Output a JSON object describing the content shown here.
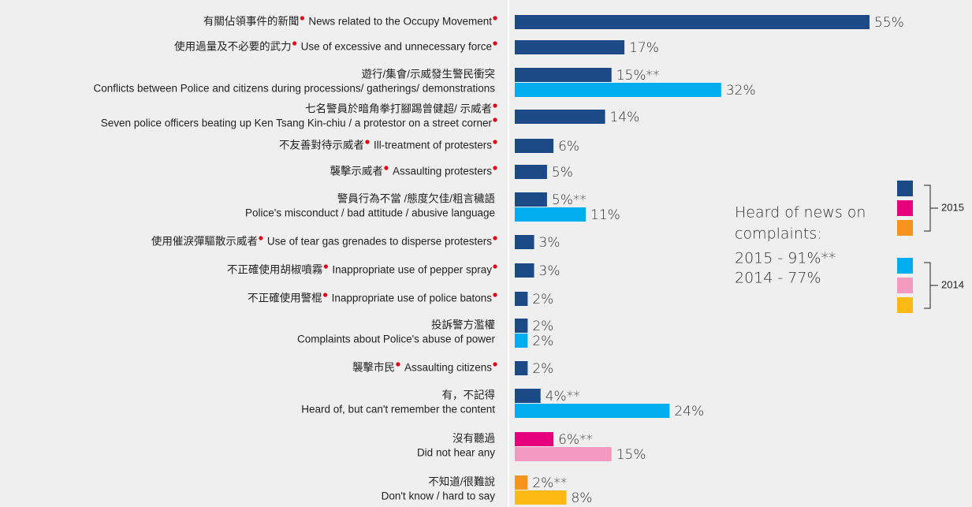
{
  "chart_data": {
    "type": "bar",
    "orientation": "horizontal",
    "categories": [
      {
        "zh": "有關佔領事件的新聞",
        "en": "News related to the Occupy Movement",
        "dot": true
      },
      {
        "zh": "使用過量及不必要的武力",
        "en": "Use of excessive and unnecessary force",
        "dot": true
      },
      {
        "zh": "遊行/集會/示威發生警民衝突",
        "en": "Conflicts between Police and citizens during processions/ gatherings/ demonstrations",
        "dot": false
      },
      {
        "zh": "七名警員於暗角拳打腳踢曾健超/ 示威者",
        "en": "Seven police officers beating up Ken Tsang Kin-chiu / a protestor on a street corner",
        "dot": true
      },
      {
        "zh": "不友善對待示威者",
        "en": "Ill-treatment of protesters",
        "dot": true
      },
      {
        "zh": "襲擊示威者",
        "en": "Assaulting protesters",
        "dot": true
      },
      {
        "zh": "警員行為不當 /態度欠佳/粗言穢語",
        "en": "Police's misconduct / bad attitude / abusive language",
        "dot": false
      },
      {
        "zh": "使用催淚彈驅散示威者",
        "en": "Use of tear gas grenades to disperse protesters",
        "dot": true
      },
      {
        "zh": "不正確使用胡椒噴霧",
        "en": "Inappropriate use of pepper spray",
        "dot": true
      },
      {
        "zh": "不正確使用警棍",
        "en": "Inappropriate use of police batons",
        "dot": true
      },
      {
        "zh": "投訴警方濫權",
        "en": "Complaints about Police's abuse of power",
        "dot": false
      },
      {
        "zh": "襲擊市民",
        "en": "Assaulting citizens",
        "dot": true
      },
      {
        "zh": "有，不記得",
        "en": "Heard of, but can't remember the content",
        "dot": false
      },
      {
        "zh": "沒有聽過",
        "en": "Did not hear any",
        "dot": false
      },
      {
        "zh": "不知道/很難說",
        "en": "Don't know / hard to say",
        "dot": false
      }
    ],
    "series": [
      {
        "name": "2015",
        "values": [
          55,
          17,
          15,
          14,
          6,
          5,
          5,
          3,
          3,
          2,
          2,
          2,
          4,
          6,
          2
        ],
        "value_labels": [
          "55%",
          "17%",
          "15%**",
          "14%",
          "6%",
          "5%",
          "5%**",
          "3%",
          "3%",
          "2%",
          "2%",
          "2%",
          "4%**",
          "6%**",
          "2%**"
        ],
        "colors": [
          "#1b4a87",
          "#1b4a87",
          "#1b4a87",
          "#1b4a87",
          "#1b4a87",
          "#1b4a87",
          "#1b4a87",
          "#1b4a87",
          "#1b4a87",
          "#1b4a87",
          "#1b4a87",
          "#1b4a87",
          "#1b4a87",
          "#e6007e",
          "#f7941d"
        ],
        "legend_colors": [
          "#1b4a87",
          "#e6007e",
          "#f7941d"
        ]
      },
      {
        "name": "2014",
        "values": [
          null,
          null,
          32,
          null,
          null,
          null,
          11,
          null,
          null,
          null,
          2,
          null,
          24,
          15,
          8
        ],
        "value_labels": [
          null,
          null,
          "32%",
          null,
          null,
          null,
          "11%",
          null,
          null,
          null,
          "2%",
          null,
          "24%",
          "15%",
          "8%"
        ],
        "colors": [
          null,
          null,
          "#00aeef",
          null,
          null,
          null,
          "#00aeef",
          null,
          null,
          null,
          "#00aeef",
          null,
          "#00aeef",
          "#f49ac1",
          "#fdb913"
        ],
        "legend_colors": [
          "#00aeef",
          "#f49ac1",
          "#fdb913"
        ]
      }
    ],
    "xlim": [
      0,
      55
    ],
    "dot_color": "#e30613",
    "annotation": [
      "Heard of news on",
      "complaints:",
      "2015 - 91%**",
      "2014 - 77%"
    ]
  }
}
